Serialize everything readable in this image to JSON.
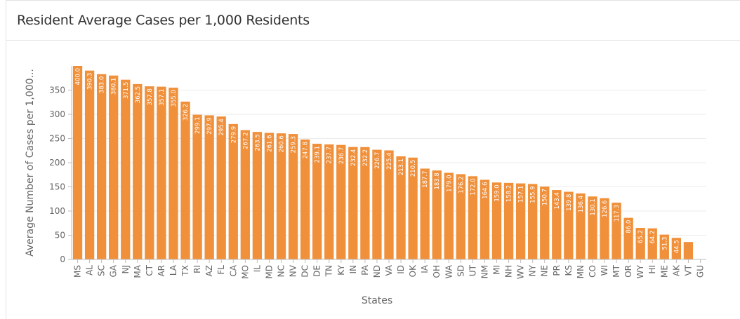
{
  "panel": {
    "title": "Resident Average Cases per 1,000 Residents"
  },
  "colors": {
    "bar": "#f0903a",
    "grid": "#ebebeb",
    "axis": "#bdbdbd"
  },
  "chart_data": {
    "type": "bar",
    "title": "Resident Average Cases per 1,000 Residents",
    "xlabel": "States",
    "ylabel": "Average Number of Cases per 1,000...",
    "ylim": [
      0,
      400
    ],
    "yticks": [
      0,
      50,
      100,
      150,
      200,
      250,
      300,
      350
    ],
    "grid": true,
    "categories": [
      "MS",
      "AL",
      "SC",
      "GA",
      "NJ",
      "MA",
      "CT",
      "AR",
      "LA",
      "TX",
      "RI",
      "AZ",
      "FL",
      "CA",
      "MO",
      "IL",
      "MD",
      "NC",
      "NV",
      "DC",
      "DE",
      "TN",
      "KY",
      "IN",
      "PA",
      "ND",
      "VA",
      "ID",
      "OK",
      "IA",
      "OH",
      "WA",
      "SD",
      "UT",
      "NM",
      "MI",
      "NH",
      "WV",
      "NY",
      "NE",
      "PR",
      "KS",
      "MN",
      "CO",
      "WI",
      "MT",
      "OR",
      "WY",
      "HI",
      "ME",
      "AK",
      "VT",
      "GU"
    ],
    "values": [
      400.0,
      390.3,
      383.0,
      380.1,
      371.5,
      362.5,
      357.8,
      357.1,
      355.0,
      326.2,
      299.1,
      297.9,
      295.4,
      279.9,
      267.2,
      263.5,
      261.6,
      260.6,
      259.3,
      247.8,
      239.1,
      237.7,
      236.7,
      232.4,
      232.2,
      226.7,
      225.4,
      213.1,
      210.5,
      187.7,
      183.8,
      179.0,
      176.2,
      172.0,
      164.6,
      159.0,
      158.2,
      157.1,
      155.9,
      150.7,
      143.4,
      139.8,
      136.4,
      130.1,
      126.6,
      117.3,
      86.0,
      65.2,
      64.2,
      51.3,
      44.5,
      36.0,
      0
    ],
    "data_labels": [
      "400.0",
      "390.3",
      "383.0",
      "380.1",
      "371.5",
      "362.5",
      "357.8",
      "357.1",
      "355.0",
      "326.2",
      "299.1",
      "297.9",
      "295.4",
      "279.9",
      "267.2",
      "263.5",
      "261.6",
      "260.6",
      "259.3",
      "247.8",
      "239.1",
      "237.7",
      "236.7",
      "232.4",
      "232.2",
      "226.7",
      "225.4",
      "213.1",
      "210.5",
      "187.7",
      "183.8",
      "179.0",
      "176.2",
      "172.0",
      "164.6",
      "159.0",
      "158.2",
      "157.1",
      "155.9",
      "150.7",
      "143.4",
      "139.8",
      "136.4",
      "130.1",
      "126.6",
      "117.3",
      "86.0",
      "65.2",
      "64.2",
      "51.3",
      "44.5",
      "",
      ""
    ]
  }
}
